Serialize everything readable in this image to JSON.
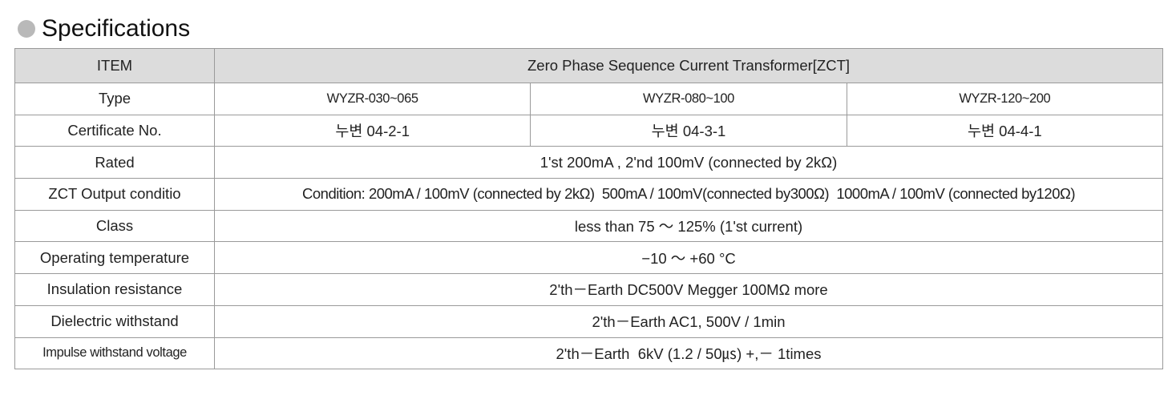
{
  "header": {
    "title": "Specifications"
  },
  "table": {
    "columns": [
      "ITEM",
      "Zero Phase Sequence Current Transformer[ZCT]"
    ],
    "rows": [
      [
        "Type",
        "WYZR-030~065",
        "WYZR-080~100",
        "WYZR-120~200"
      ],
      [
        "Certificate No.",
        "누변 04-2-1",
        "누변 04-3-1",
        "누변 04-4-1"
      ],
      [
        "Rated",
        "1'st 200mA , 2'nd 100mV (connected by 2kΩ)"
      ],
      [
        "ZCT Output conditio",
        "Condition: 200mA / 100mV (connected by 2kΩ)  500mA / 100mV(connected by300Ω)  1000mA / 100mV (connected by120Ω)"
      ],
      [
        "Class",
        "less than 75 ～ 125% (1'st current)"
      ],
      [
        "Operating temperature",
        "−10 ～ +60 °C"
      ],
      [
        "Insulation resistance",
        "2'th－Earth DC500V Megger 100MΩ more"
      ],
      [
        "Dielectric withstand",
        "2'th－Earth AC1, 500V / 1min"
      ],
      [
        "Impulse withstand voltage",
        "2'th－Earth  6kV (1.2 / 50㎲) +,－ 1times"
      ]
    ]
  }
}
